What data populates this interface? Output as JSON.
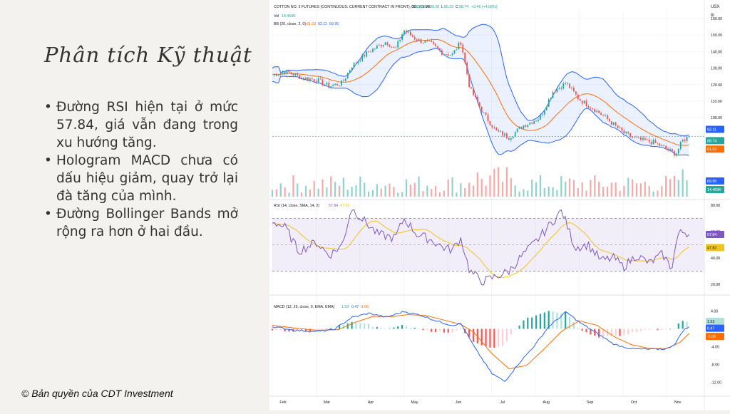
{
  "slide": {
    "title": "Phân tích Kỹ thuật",
    "bullets": [
      "Đường RSI hiện tại ở mức 57.84, giá vẫn đang trong xu hướng tăng.",
      "Hologram MACD chưa có dấu hiệu giảm, quay trở lại đà tăng của mình.",
      "Đường Bollinger Bands mở rộng ra hơn ở hai đầu."
    ],
    "copyright": "© Bản quyền của CDT Investment"
  },
  "chart_data": [
    {
      "type": "candlestick",
      "header": "COTTON NO. 2 FUTURES (CONTINUOUS: CURRENT CONTRACT IN FRONT), 1D, ICEUS",
      "ohlc": {
        "O": "85.35",
        "H": "89.28",
        "L": "85.23",
        "C": "88.74",
        "change": "+3.46 (+4.06%)"
      },
      "currency": "USX",
      "unit": "lb",
      "volume_label": "Vol",
      "volume_value": "14.469K",
      "bb_label": "BB (20, close, 2, 0)",
      "bb_values": [
        "81.03",
        "92.11",
        "69.95"
      ],
      "ylim": [
        80,
        160
      ],
      "yticks": [
        "160.00",
        "150.00",
        "140.00",
        "130.00",
        "120.00",
        "110.00",
        "100.00"
      ],
      "price_tags": {
        "bb_upper": "92.11",
        "price": "88.74",
        "bb_basis": "81.03",
        "bb_lower": "69.95",
        "volume": "14.469K"
      },
      "x_month_labels": [
        "Feb",
        "Mar",
        "Apr",
        "May",
        "Jun",
        "Jul",
        "Aug",
        "Sep",
        "Oct",
        "Nov"
      ],
      "close_keypoints": [
        {
          "month": 0.0,
          "price": 126
        },
        {
          "month": 0.3,
          "price": 128
        },
        {
          "month": 0.7,
          "price": 124
        },
        {
          "month": 1.0,
          "price": 123
        },
        {
          "month": 1.3,
          "price": 119
        },
        {
          "month": 1.6,
          "price": 121
        },
        {
          "month": 1.8,
          "price": 131
        },
        {
          "month": 2.2,
          "price": 140
        },
        {
          "month": 2.6,
          "price": 146
        },
        {
          "month": 2.8,
          "price": 141
        },
        {
          "month": 3.0,
          "price": 153
        },
        {
          "month": 3.3,
          "price": 147
        },
        {
          "month": 3.6,
          "price": 145
        },
        {
          "month": 3.9,
          "price": 139
        },
        {
          "month": 4.1,
          "price": 138
        },
        {
          "month": 4.3,
          "price": 146
        },
        {
          "month": 4.5,
          "price": 118
        },
        {
          "month": 4.8,
          "price": 103
        },
        {
          "month": 5.1,
          "price": 92
        },
        {
          "month": 5.4,
          "price": 88
        },
        {
          "month": 5.7,
          "price": 95
        },
        {
          "month": 6.1,
          "price": 100
        },
        {
          "month": 6.4,
          "price": 116
        },
        {
          "month": 6.7,
          "price": 121
        },
        {
          "month": 7.0,
          "price": 111
        },
        {
          "month": 7.3,
          "price": 106
        },
        {
          "month": 7.6,
          "price": 100
        },
        {
          "month": 8.0,
          "price": 91
        },
        {
          "month": 8.3,
          "price": 87
        },
        {
          "month": 8.7,
          "price": 85
        },
        {
          "month": 9.0,
          "price": 81
        },
        {
          "month": 9.2,
          "price": 78
        },
        {
          "month": 9.35,
          "price": 86
        },
        {
          "month": 9.5,
          "price": 88.74
        }
      ]
    },
    {
      "type": "line",
      "label": "RSI (14, close, SMA, 14, 2)",
      "values": [
        "57.84",
        "47.82"
      ],
      "ylim": [
        15,
        85
      ],
      "yticks": [
        "80.00",
        "60.00",
        "40.00",
        "20.00"
      ],
      "tags": [
        "57.84",
        "47.82"
      ],
      "band": [
        30,
        70
      ],
      "midline": 50,
      "rsi_keypoints": [
        {
          "month": 0.0,
          "rsi": 68
        },
        {
          "month": 0.3,
          "rsi": 63
        },
        {
          "month": 0.6,
          "rsi": 45
        },
        {
          "month": 1.0,
          "rsi": 52
        },
        {
          "month": 1.3,
          "rsi": 42
        },
        {
          "month": 1.6,
          "rsi": 50
        },
        {
          "month": 1.8,
          "rsi": 78
        },
        {
          "month": 2.1,
          "rsi": 68
        },
        {
          "month": 2.4,
          "rsi": 58
        },
        {
          "month": 2.8,
          "rsi": 55
        },
        {
          "month": 3.0,
          "rsi": 70
        },
        {
          "month": 3.3,
          "rsi": 58
        },
        {
          "month": 3.6,
          "rsi": 54
        },
        {
          "month": 3.9,
          "rsi": 48
        },
        {
          "month": 4.1,
          "rsi": 46
        },
        {
          "month": 4.3,
          "rsi": 55
        },
        {
          "month": 4.5,
          "rsi": 30
        },
        {
          "month": 4.8,
          "rsi": 22
        },
        {
          "month": 5.1,
          "rsi": 26
        },
        {
          "month": 5.4,
          "rsi": 30
        },
        {
          "month": 5.7,
          "rsi": 42
        },
        {
          "month": 6.0,
          "rsi": 52
        },
        {
          "month": 6.3,
          "rsi": 64
        },
        {
          "month": 6.6,
          "rsi": 76
        },
        {
          "month": 6.9,
          "rsi": 48
        },
        {
          "month": 7.2,
          "rsi": 50
        },
        {
          "month": 7.5,
          "rsi": 38
        },
        {
          "month": 7.8,
          "rsi": 40
        },
        {
          "month": 8.0,
          "rsi": 33
        },
        {
          "month": 8.3,
          "rsi": 42
        },
        {
          "month": 8.6,
          "rsi": 36
        },
        {
          "month": 8.9,
          "rsi": 43
        },
        {
          "month": 9.1,
          "rsi": 32
        },
        {
          "month": 9.25,
          "rsi": 58
        },
        {
          "month": 9.4,
          "rsi": 60
        },
        {
          "month": 9.5,
          "rsi": 57.84
        }
      ]
    },
    {
      "type": "bar",
      "label": "MACD (12, 26, close, 9, EMA, EMA)",
      "values": [
        "1.53",
        "0.47",
        "-1.06"
      ],
      "ylim": [
        -13,
        5
      ],
      "yticks": [
        "4.00",
        "0.00",
        "-4.00",
        "-8.00",
        "-12.00"
      ],
      "tags": [
        "1.53",
        "0.47",
        "-1.06"
      ],
      "colors": {
        "macd": "#2962ff",
        "signal": "#ff6d00",
        "hist_up_strong": "#26a69a",
        "hist_up_weak": "#b2dfdb",
        "hist_down_strong": "#ff5252",
        "hist_down_weak": "#ffcdd2"
      },
      "macd_keypoints": [
        {
          "month": 0.0,
          "macd": 0.5
        },
        {
          "month": 0.5,
          "macd": -0.3
        },
        {
          "month": 1.0,
          "macd": -0.6
        },
        {
          "month": 1.4,
          "macd": -0.2
        },
        {
          "month": 1.8,
          "macd": 2.5
        },
        {
          "month": 2.2,
          "macd": 3.5
        },
        {
          "month": 2.6,
          "macd": 2.6
        },
        {
          "month": 3.0,
          "macd": 3.9
        },
        {
          "month": 3.4,
          "macd": 3.0
        },
        {
          "month": 3.8,
          "macd": 1.6
        },
        {
          "month": 4.1,
          "macd": 0.8
        },
        {
          "month": 4.3,
          "macd": 1.2
        },
        {
          "month": 4.6,
          "macd": -4.0
        },
        {
          "month": 5.0,
          "macd": -10.0
        },
        {
          "month": 5.3,
          "macd": -11.8
        },
        {
          "month": 5.6,
          "macd": -8.0
        },
        {
          "month": 6.0,
          "macd": -3.5
        },
        {
          "month": 6.3,
          "macd": 0.5
        },
        {
          "month": 6.7,
          "macd": 3.8
        },
        {
          "month": 7.0,
          "macd": 1.5
        },
        {
          "month": 7.4,
          "macd": -1.0
        },
        {
          "month": 7.8,
          "macd": -3.5
        },
        {
          "month": 8.2,
          "macd": -4.5
        },
        {
          "month": 8.6,
          "macd": -4.6
        },
        {
          "month": 9.0,
          "macd": -4.5
        },
        {
          "month": 9.2,
          "macd": -3.2
        },
        {
          "month": 9.35,
          "macd": -0.5
        },
        {
          "month": 9.5,
          "macd": 0.47
        }
      ],
      "signal_keypoints": [
        {
          "month": 0.0,
          "signal": 0.8
        },
        {
          "month": 0.5,
          "signal": 0.2
        },
        {
          "month": 1.0,
          "signal": -0.3
        },
        {
          "month": 1.5,
          "signal": -0.2
        },
        {
          "month": 1.9,
          "signal": 1.5
        },
        {
          "month": 2.3,
          "signal": 2.8
        },
        {
          "month": 2.7,
          "signal": 2.7
        },
        {
          "month": 3.1,
          "signal": 3.2
        },
        {
          "month": 3.5,
          "signal": 3.0
        },
        {
          "month": 3.9,
          "signal": 2.0
        },
        {
          "month": 4.3,
          "signal": 1.0
        },
        {
          "month": 4.6,
          "signal": -0.8
        },
        {
          "month": 5.0,
          "signal": -5.5
        },
        {
          "month": 5.4,
          "signal": -9.0
        },
        {
          "month": 5.8,
          "signal": -8.2
        },
        {
          "month": 6.2,
          "signal": -4.5
        },
        {
          "month": 6.6,
          "signal": -0.5
        },
        {
          "month": 7.0,
          "signal": 1.8
        },
        {
          "month": 7.4,
          "signal": 0.8
        },
        {
          "month": 7.8,
          "signal": -1.8
        },
        {
          "month": 8.2,
          "signal": -3.6
        },
        {
          "month": 8.6,
          "signal": -4.4
        },
        {
          "month": 9.0,
          "signal": -4.4
        },
        {
          "month": 9.3,
          "signal": -3.0
        },
        {
          "month": 9.5,
          "signal": -1.06
        }
      ]
    }
  ]
}
